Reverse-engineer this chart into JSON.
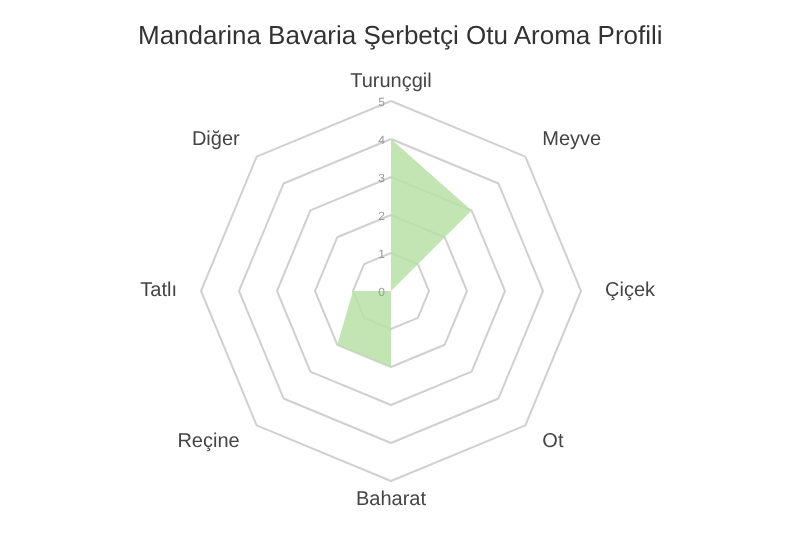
{
  "chart_data": {
    "type": "radar",
    "title": "Mandarina Bavaria Şerbetçi Otu Aroma Profili",
    "categories": [
      "Turunçgil",
      "Meyve",
      "Çiçek",
      "Ot",
      "Baharat",
      "Reçine",
      "Tatlı",
      "Diğer"
    ],
    "series": [
      {
        "color": "#b9dfa6",
        "values": [
          4,
          3,
          0,
          0,
          2,
          2,
          1,
          0
        ]
      }
    ],
    "ylim": [
      0,
      5
    ],
    "yticks": [
      0,
      1,
      2,
      3,
      4,
      5
    ],
    "grid": true
  }
}
